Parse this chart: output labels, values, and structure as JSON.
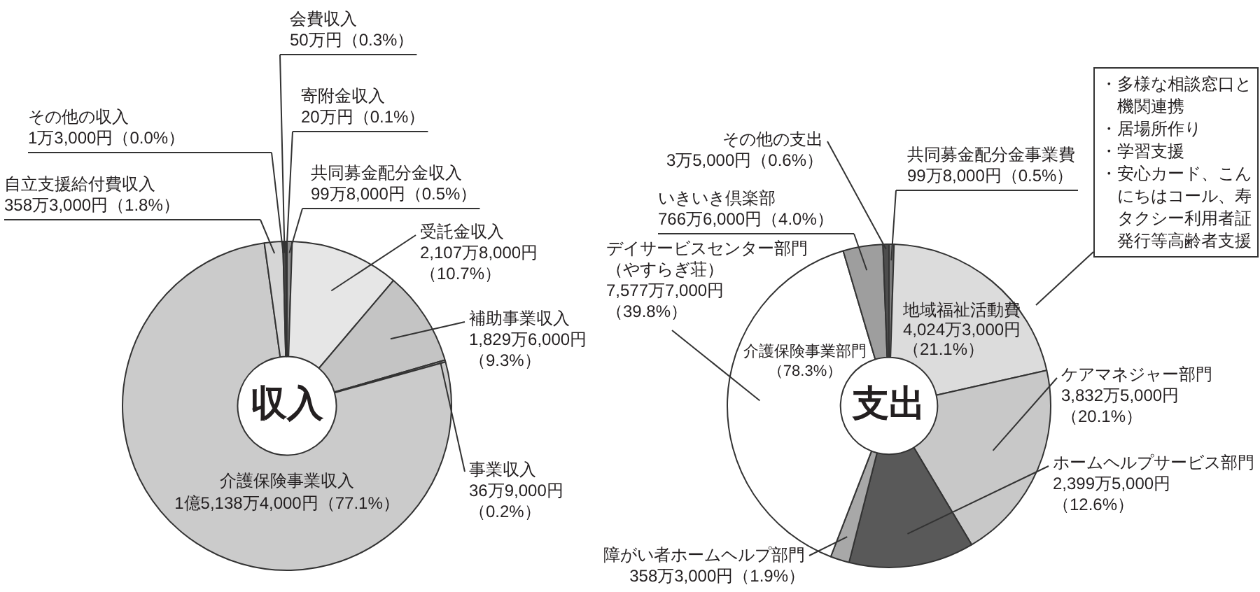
{
  "chart_data": [
    {
      "type": "donut",
      "title": "収入",
      "categories": [
        "共同募金配分金収入",
        "受託金収入",
        "補助事業収入",
        "事業収入",
        "介護保険事業収入",
        "自立支援給付費収入",
        "その他の収入",
        "会費収入",
        "寄附金収入"
      ],
      "values": [
        0.5,
        10.7,
        9.3,
        0.2,
        77.1,
        1.8,
        0.0,
        0.3,
        0.1
      ],
      "value_labels": [
        "99万8,000円（0.5%）",
        "2,107万8,000円（10.7%）",
        "1,829万6,000円（9.3%）",
        "36万9,000円（0.2%）",
        "1億5,138万4,000円（77.1%）",
        "358万3,000円（1.8%）",
        "1万3,000円（0.0%）",
        "50万円（0.3%）",
        "20万円（0.1%）"
      ],
      "colors": [
        "#8c8c8c",
        "#e6e6e6",
        "#c4c4c4",
        "#a6a6a6",
        "#cbcbcb",
        "#d6d6d6",
        "#4d4d4d",
        "#4d4d4d",
        "#4d4d4d"
      ]
    },
    {
      "type": "donut",
      "title": "支出",
      "categories": [
        "共同募金配分金事業費",
        "地域福祉活動費",
        "ケアマネジャー部門",
        "ホームヘルプサービス部門",
        "障がい者ホームヘルプ部門",
        "デイサービスセンター部門（やすらぎ荘）",
        "いきいき倶楽部",
        "その他の支出"
      ],
      "values": [
        0.5,
        21.1,
        20.1,
        12.6,
        1.9,
        39.8,
        4.0,
        0.6
      ],
      "value_labels": [
        "99万8,000円（0.5%）",
        "4,024万3,000円（21.1%）",
        "3,832万5,000円（20.1%）",
        "2,399万5,000円（12.6%）",
        "358万3,000円（1.9%）",
        "7,577万7,000円（39.8%）",
        "766万6,000円（4.0%）",
        "3万5,000円（0.6%）"
      ],
      "colors": [
        "#7a7a7a",
        "#dcdcdc",
        "#c8c8c8",
        "#595959",
        "#a8a8a8",
        "#ffffff",
        "#9e9e9e",
        "#4d4d4d"
      ],
      "annotations": [
        "介護保険事業部門（78.3%）",
        "・多様な相談窓口と機関連携",
        "・居場所作り",
        "・学習支援",
        "・安心カード、こんにちはコール、寿タクシー利用者証発行等高齢者支援"
      ]
    }
  ]
}
